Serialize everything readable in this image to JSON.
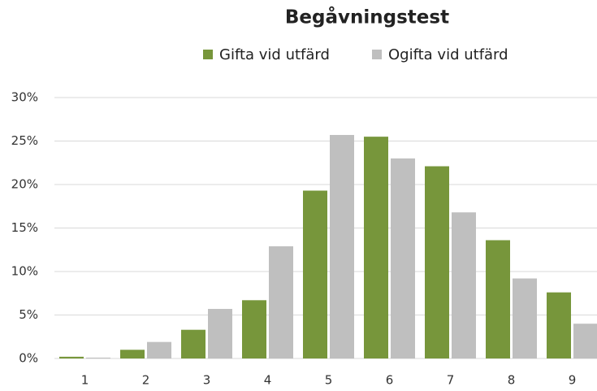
{
  "chart_data": {
    "type": "bar",
    "title": "Begåvningstest",
    "categories": [
      "1",
      "2",
      "3",
      "4",
      "5",
      "6",
      "7",
      "8",
      "9"
    ],
    "series": [
      {
        "name": "Gifta vid utfärd",
        "color": "#77963b",
        "values": [
          0.2,
          1.0,
          3.3,
          6.7,
          19.3,
          25.5,
          22.1,
          13.6,
          7.6
        ]
      },
      {
        "name": "Ogifta vid utfärd",
        "color": "#bfbfbf",
        "values": [
          0.1,
          1.9,
          5.7,
          12.9,
          25.7,
          23.0,
          16.8,
          9.2,
          4.0
        ]
      }
    ],
    "ylim": [
      0,
      30
    ],
    "yticks": [
      {
        "value": 0,
        "label": "0%"
      },
      {
        "value": 5,
        "label": "5%"
      },
      {
        "value": 10,
        "label": "10%"
      },
      {
        "value": 15,
        "label": "15%"
      },
      {
        "value": 20,
        "label": "20%"
      },
      {
        "value": 25,
        "label": "25%"
      },
      {
        "value": 30,
        "label": "30%"
      }
    ],
    "grid": true,
    "legend": "top"
  }
}
